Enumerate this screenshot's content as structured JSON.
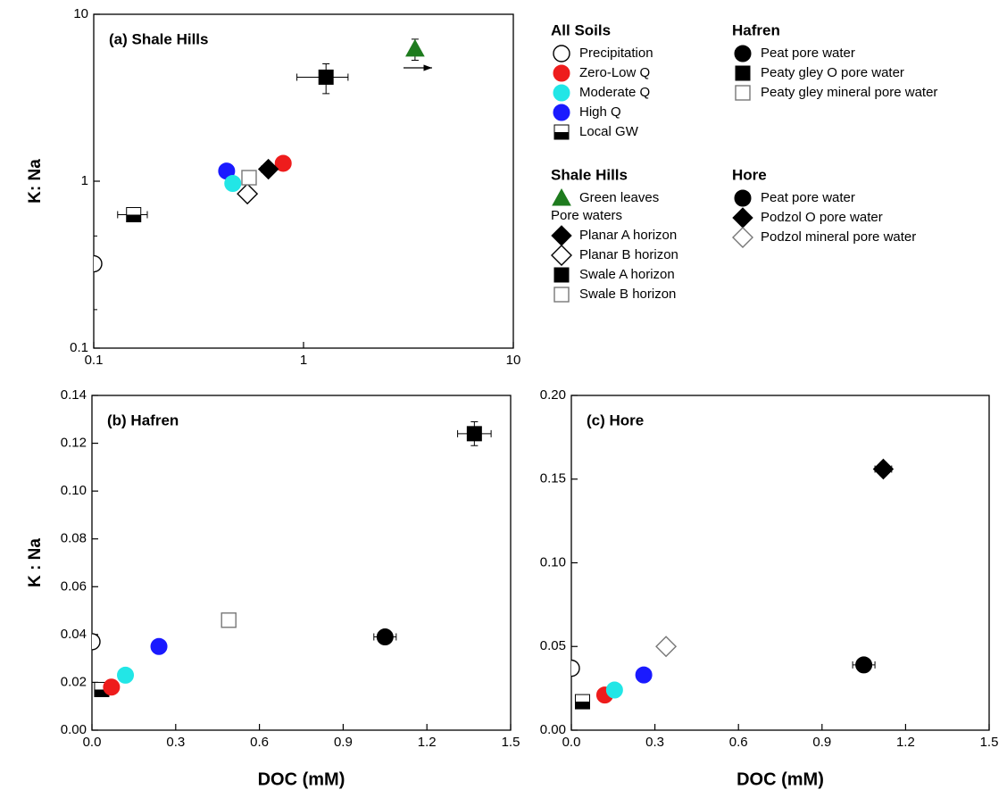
{
  "legend": [
    {
      "title": "All Soils",
      "heading": "bold",
      "entries": [
        {
          "name": "Precipitation",
          "marker": "circle",
          "color": "#000000",
          "filled": false
        },
        {
          "name": "Zero-Low Q",
          "marker": "circle",
          "color": "#ee1c1c",
          "filled": true
        },
        {
          "name": "Moderate Q",
          "marker": "circle",
          "color": "#22e6e6",
          "filled": true
        },
        {
          "name": "High Q",
          "marker": "circle",
          "color": "#1a1aff",
          "filled": true
        },
        {
          "name": "Local GW",
          "marker": "half-square",
          "color": "#000000",
          "filled": true
        }
      ]
    },
    {
      "title": "Shale Hills",
      "heading": "bold",
      "entries": [
        {
          "name": "Green leaves",
          "marker": "triangle",
          "color": "#1e7b1e",
          "filled": true
        }
      ]
    },
    {
      "title": "Pore waters",
      "heading": "plain",
      "entries": [
        {
          "name": "Planar A horizon",
          "marker": "diamond",
          "color": "#000000",
          "filled": true
        },
        {
          "name": "Planar B horizon",
          "marker": "diamond",
          "color": "#000000",
          "filled": false
        },
        {
          "name": "Swale A horizon",
          "marker": "square",
          "color": "#000000",
          "filled": true
        },
        {
          "name": "Swale B horizon",
          "marker": "square",
          "color": "#777777",
          "filled": false
        }
      ]
    },
    {
      "title": "Hafren",
      "heading": "bold",
      "entries": [
        {
          "name": "Peat pore water",
          "marker": "circle",
          "color": "#000000",
          "filled": true
        },
        {
          "name": "Peaty gley O pore water",
          "marker": "square",
          "color": "#000000",
          "filled": true
        },
        {
          "name": "Peaty gley mineral pore water",
          "marker": "square",
          "color": "#777777",
          "filled": false
        }
      ]
    },
    {
      "title": "Hore",
      "heading": "bold",
      "entries": [
        {
          "name": "Peat pore water",
          "marker": "circle",
          "color": "#000000",
          "filled": true
        },
        {
          "name": "Podzol O pore water",
          "marker": "diamond",
          "color": "#000000",
          "filled": true
        },
        {
          "name": "Podzol mineral pore water",
          "marker": "diamond",
          "color": "#777777",
          "filled": false
        }
      ]
    }
  ],
  "chart_data": [
    {
      "type": "scatter",
      "title": "(a) Shale Hills",
      "ylabel": "K: Na",
      "xscale": "log",
      "yscale": "log",
      "xlim": [
        0.1,
        10
      ],
      "ylim": [
        0.1,
        10
      ],
      "xticks": [
        0.1,
        1,
        10
      ],
      "yticks": [
        0.1,
        1,
        10
      ],
      "series": [
        {
          "name": "Precipitation",
          "x": [
            0.1
          ],
          "y": [
            0.32
          ],
          "yerr": [
            0.15
          ]
        },
        {
          "name": "Local GW",
          "x": [
            0.155
          ],
          "y": [
            0.63
          ],
          "xerr": [
            0.025
          ]
        },
        {
          "name": "High Q",
          "x": [
            0.43
          ],
          "y": [
            1.15
          ]
        },
        {
          "name": "Moderate Q",
          "x": [
            0.46
          ],
          "y": [
            0.97
          ]
        },
        {
          "name": "Zero-Low Q",
          "x": [
            0.8
          ],
          "y": [
            1.28
          ]
        },
        {
          "name": "Planar B horizon",
          "x": [
            0.54
          ],
          "y": [
            0.84
          ]
        },
        {
          "name": "Swale B horizon",
          "x": [
            0.55
          ],
          "y": [
            1.05
          ]
        },
        {
          "name": "Planar A horizon",
          "x": [
            0.68
          ],
          "y": [
            1.18
          ],
          "xerr": [
            0.05
          ],
          "yerr": [
            0.08
          ]
        },
        {
          "name": "Swale A horizon",
          "x": [
            1.28
          ],
          "y": [
            4.2
          ],
          "xerr": [
            0.35
          ],
          "yerr": [
            0.85
          ]
        },
        {
          "name": "Green leaves",
          "x": [
            3.4
          ],
          "y": [
            6.2
          ],
          "yerr": [
            0.9
          ]
        }
      ]
    },
    {
      "type": "scatter",
      "title": "(b) Hafren",
      "ylabel": "K : Na",
      "xlabel": "DOC (mM)",
      "xlim": [
        0,
        1.5
      ],
      "ylim": [
        0,
        0.14
      ],
      "xticks": [
        {
          "value": 0,
          "label": "0.0"
        },
        0.3,
        0.6,
        0.9,
        1.2,
        1.5
      ],
      "yticks": [
        {
          "value": 0,
          "label": "0.00"
        },
        0.02,
        0.04,
        0.06,
        0.08,
        {
          "value": 0.1,
          "label": "0.10"
        },
        0.12,
        0.14
      ],
      "series": [
        {
          "name": "Precipitation",
          "x": [
            0
          ],
          "y": [
            0.037
          ]
        },
        {
          "name": "Local GW",
          "x": [
            0.035
          ],
          "y": [
            0.017
          ]
        },
        {
          "name": "Zero-Low Q",
          "x": [
            0.07
          ],
          "y": [
            0.018
          ]
        },
        {
          "name": "Moderate Q",
          "x": [
            0.12
          ],
          "y": [
            0.023
          ]
        },
        {
          "name": "High Q",
          "x": [
            0.24
          ],
          "y": [
            0.035
          ]
        },
        {
          "name": "Peaty gley mineral pore water",
          "x": [
            0.49
          ],
          "y": [
            0.046
          ]
        },
        {
          "name": "Peat pore water",
          "x": [
            1.05
          ],
          "y": [
            0.039
          ],
          "xerr": [
            0.04
          ]
        },
        {
          "name": "Peaty gley O pore water",
          "x": [
            1.37
          ],
          "y": [
            0.124
          ],
          "xerr": [
            0.06
          ],
          "yerr": [
            0.005
          ]
        }
      ]
    },
    {
      "type": "scatter",
      "title": "(c) Hore",
      "xlabel": "DOC (mM)",
      "xlim": [
        0,
        1.5
      ],
      "ylim": [
        0,
        0.2
      ],
      "xticks": [
        {
          "value": 0,
          "label": "0.0"
        },
        0.3,
        0.6,
        0.9,
        1.2,
        1.5
      ],
      "yticks": [
        {
          "value": 0,
          "label": "0.00"
        },
        0.05,
        {
          "value": 0.1,
          "label": "0.10"
        },
        0.15,
        {
          "value": 0.2,
          "label": "0.20"
        }
      ],
      "series": [
        {
          "name": "Precipitation",
          "x": [
            0
          ],
          "y": [
            0.037
          ]
        },
        {
          "name": "Local GW",
          "x": [
            0.04
          ],
          "y": [
            0.017
          ]
        },
        {
          "name": "Zero-Low Q",
          "x": [
            0.12
          ],
          "y": [
            0.021
          ]
        },
        {
          "name": "Moderate Q",
          "x": [
            0.155
          ],
          "y": [
            0.024
          ]
        },
        {
          "name": "High Q",
          "x": [
            0.26
          ],
          "y": [
            0.033
          ]
        },
        {
          "name": "Podzol mineral pore water",
          "x": [
            0.34
          ],
          "y": [
            0.05
          ]
        },
        {
          "name": "Peat pore water",
          "x": [
            1.05
          ],
          "y": [
            0.039
          ],
          "xerr": [
            0.04
          ]
        },
        {
          "name": "Podzol O pore water",
          "x": [
            1.12
          ],
          "y": [
            0.156
          ],
          "xerr": [
            0.03
          ],
          "yerr": [
            0.004
          ]
        }
      ]
    }
  ]
}
